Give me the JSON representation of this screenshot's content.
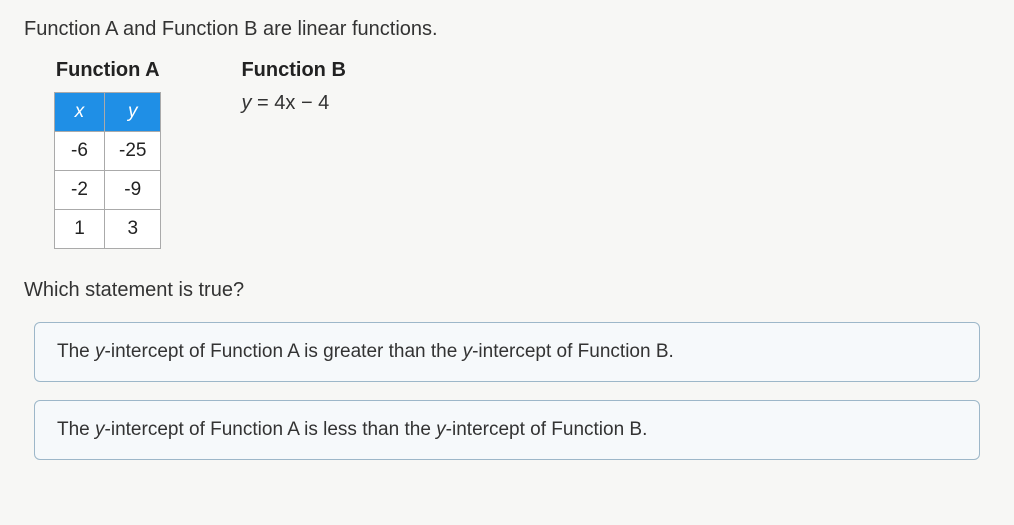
{
  "intro": "Function A and Function B are linear functions.",
  "functionA": {
    "title": "Function A",
    "table": {
      "headers": [
        "x",
        "y"
      ],
      "header_bg": "#1f8fe6",
      "header_color": "#ffffff",
      "rows": [
        [
          "-6",
          "-25"
        ],
        [
          "-2",
          "-9"
        ],
        [
          "1",
          "3"
        ]
      ],
      "cell_bg": "#ffffff",
      "border_color": "#aaaaaa"
    }
  },
  "functionB": {
    "title": "Function B",
    "equation_var": "y",
    "equation_rest": " = 4x − 4"
  },
  "question": "Which statement is true?",
  "options": [
    {
      "prefix": "The ",
      "ital1": "y",
      "mid1": "-intercept of Function A is greater than the ",
      "ital2": "y",
      "mid2": "-intercept of Function B."
    },
    {
      "prefix": "The ",
      "ital1": "y",
      "mid1": "-intercept of Function A is less than the ",
      "ital2": "y",
      "mid2": "-intercept of Function B."
    }
  ],
  "styling": {
    "page_bg": "#f7f7f5",
    "option_border": "#9db7c9",
    "option_bg": "#f6f9fb",
    "font_family": "Arial",
    "base_fontsize": 20
  }
}
